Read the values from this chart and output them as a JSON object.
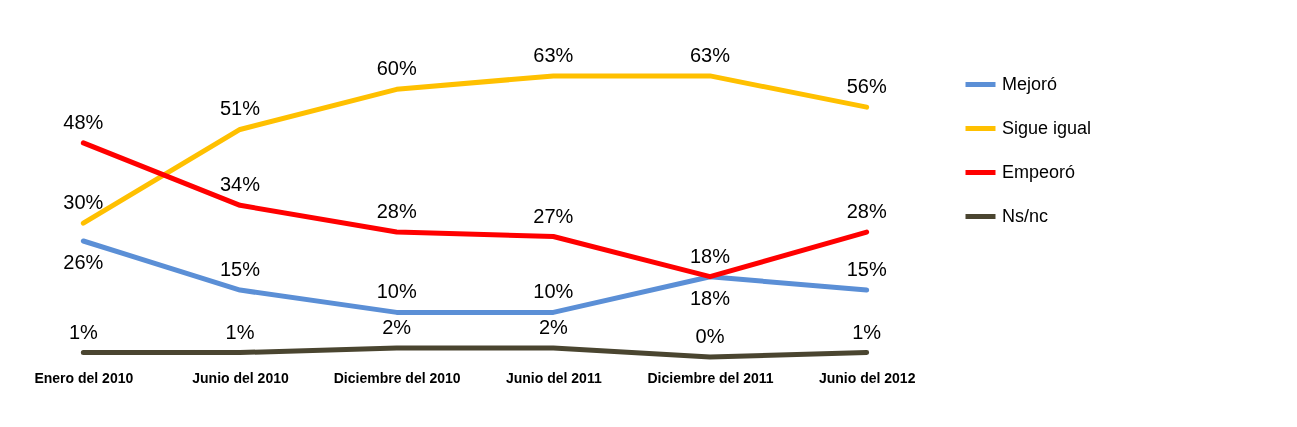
{
  "chart_data": {
    "type": "line",
    "categories": [
      "Enero del 2010",
      "Junio del 2010",
      "Diciembre del 2010",
      "Junio del 2011",
      "Diciembre del 2011",
      "Junio del 2012"
    ],
    "series": [
      {
        "name": "Mejoró",
        "color": "#5b8fd6",
        "values": [
          26,
          15,
          10,
          10,
          18,
          15
        ],
        "value_labels": [
          "26%",
          "15%",
          "10%",
          "10%",
          "18%",
          "15%"
        ]
      },
      {
        "name": "Sigue igual",
        "color": "#ffc000",
        "values": [
          30,
          51,
          60,
          63,
          63,
          56
        ],
        "value_labels": [
          "30%",
          "51%",
          "60%",
          "63%",
          "63%",
          "56%"
        ]
      },
      {
        "name": "Empeoró",
        "color": "#ff0000",
        "values": [
          48,
          34,
          28,
          27,
          18,
          28
        ],
        "value_labels": [
          "48%",
          "34%",
          "28%",
          "27%",
          "18%",
          "28%"
        ]
      },
      {
        "name": "Ns/nc",
        "color": "#4a4530",
        "values": [
          1,
          1,
          2,
          2,
          0,
          1
        ],
        "value_labels": [
          "1%",
          "1%",
          "2%",
          "2%",
          "0%",
          "1%"
        ]
      }
    ],
    "legend": "right",
    "grid": false,
    "marker": "none",
    "tick_labels": "x"
  }
}
